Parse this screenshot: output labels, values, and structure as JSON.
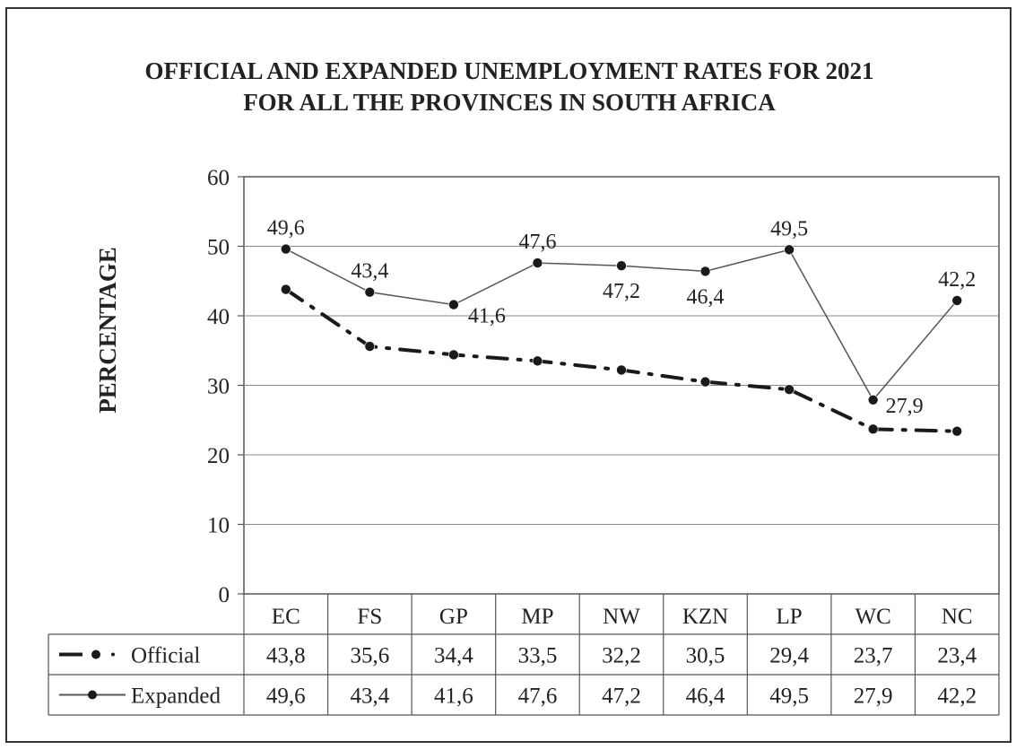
{
  "chart_data": {
    "type": "line",
    "title_line1": "OFFICIAL AND EXPANDED UNEMPLOYMENT RATES FOR 2021",
    "title_line2": "FOR ALL THE PROVINCES IN SOUTH AFRICA",
    "ylabel": "PERCENTAGE",
    "xlabel": "",
    "ylim": [
      0,
      60
    ],
    "yticks": [
      0,
      10,
      20,
      30,
      40,
      50,
      60
    ],
    "grid": true,
    "legend_placement": "data-table-left",
    "categories": [
      "EC",
      "FS",
      "GP",
      "MP",
      "NW",
      "KZN",
      "LP",
      "WC",
      "NC"
    ],
    "series": [
      {
        "name": "Official",
        "style": "dash-dot",
        "color": "#1a1a1a",
        "values": [
          43.8,
          35.6,
          34.4,
          33.5,
          32.2,
          30.5,
          29.4,
          23.7,
          23.4
        ],
        "display": [
          "43,8",
          "35,6",
          "34,4",
          "33,5",
          "32,2",
          "30,5",
          "29,4",
          "23,7",
          "23,4"
        ]
      },
      {
        "name": "Expanded",
        "style": "solid",
        "color": "#555555",
        "values": [
          49.6,
          43.4,
          41.6,
          47.6,
          47.2,
          46.4,
          49.5,
          27.9,
          42.2
        ],
        "display": [
          "49,6",
          "43,4",
          "41,6",
          "47,6",
          "47,2",
          "46,4",
          "49,5",
          "27,9",
          "42,2"
        ],
        "data_labels": true
      }
    ]
  }
}
